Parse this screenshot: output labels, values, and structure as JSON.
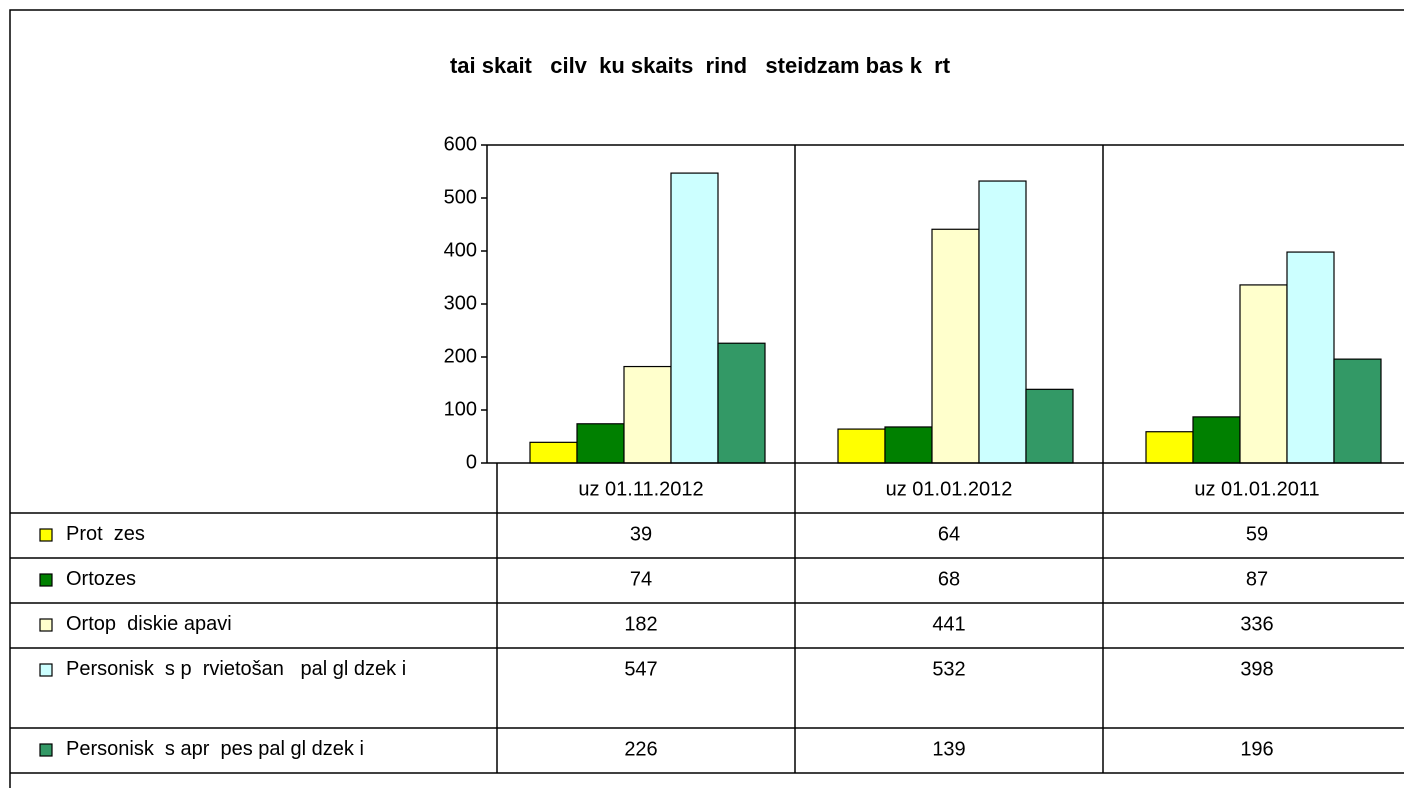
{
  "chart_data": {
    "type": "bar",
    "title": "tai skait   cilv  ku skaits  rind   steidzam bas k  rt",
    "categories": [
      "uz 01.11.2012",
      "uz 01.01.2012",
      "uz 01.01.2011"
    ],
    "series": [
      {
        "name": "Prot  zes",
        "color": "#ffff00",
        "values": [
          39,
          64,
          59
        ]
      },
      {
        "name": "Ortozes",
        "color": "#008000",
        "values": [
          74,
          68,
          87
        ]
      },
      {
        "name": "Ortop  diskie apavi",
        "color": "#ffffcc",
        "values": [
          182,
          441,
          336
        ]
      },
      {
        "name": "Personisk  s p  rvietošan   pal gl dzek i",
        "color": "#ccffff",
        "values": [
          547,
          532,
          398
        ]
      },
      {
        "name": "Personisk  s apr  pes pal gl dzek i",
        "color": "#339966",
        "values": [
          226,
          139,
          196
        ]
      }
    ],
    "ylim": [
      0,
      600
    ],
    "yticks": [
      0,
      100,
      200,
      300,
      400,
      500,
      600
    ],
    "grid": false,
    "data_table": true
  }
}
